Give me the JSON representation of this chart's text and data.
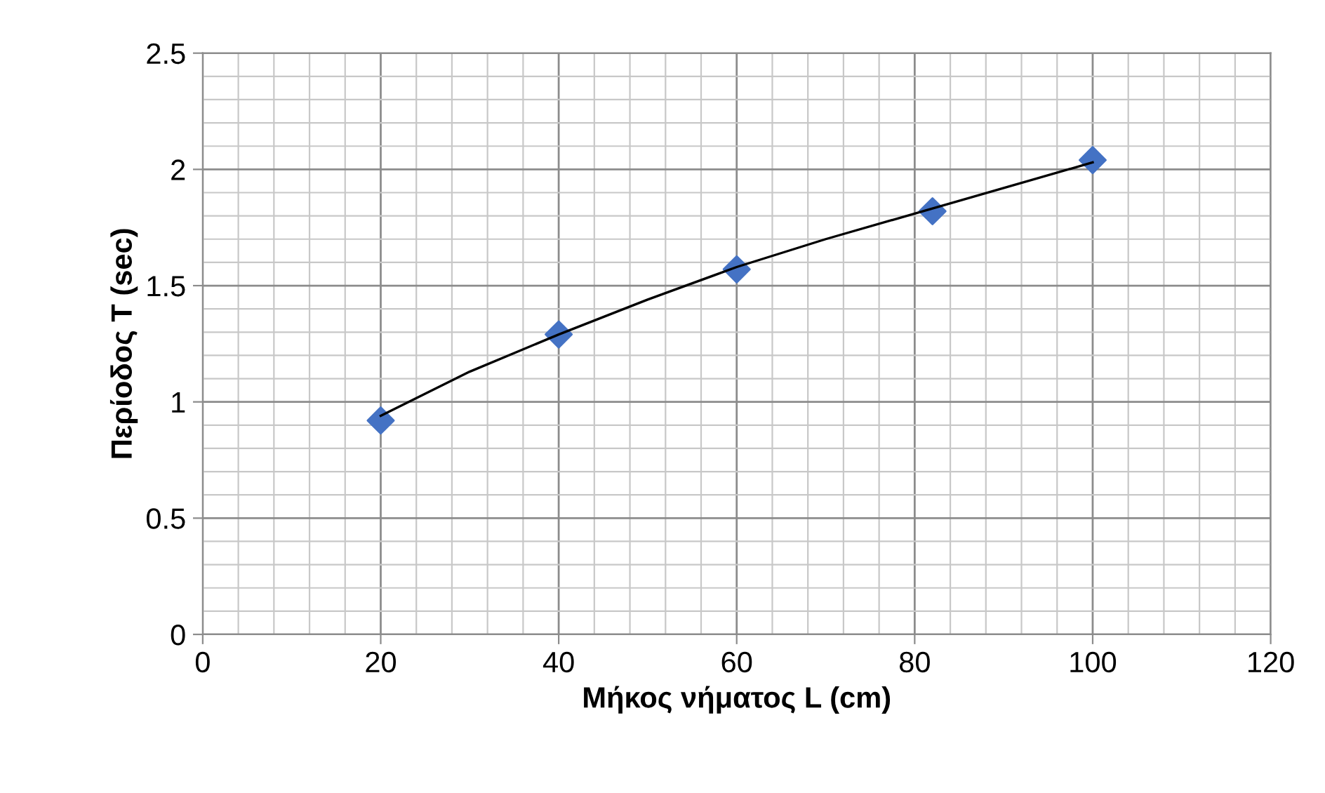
{
  "chart_data": {
    "type": "scatter",
    "xlabel": "Μήκος νήματος L (cm)",
    "ylabel": "Περίοδος T (sec)",
    "series": [
      {
        "color": "#4472c4",
        "marker": "diamond",
        "x": [
          20,
          40,
          60,
          82,
          100
        ],
        "values": [
          0.92,
          1.29,
          1.57,
          1.82,
          2.04
        ]
      },
      {
        "type": "line",
        "color": "#000000",
        "marker": "none",
        "x": [
          20,
          30,
          40,
          50,
          60,
          70,
          80,
          90,
          100
        ],
        "values": [
          0.94,
          1.13,
          1.29,
          1.44,
          1.58,
          1.7,
          1.81,
          1.92,
          2.03
        ]
      }
    ],
    "xlim": [
      0,
      120
    ],
    "xticks": [
      0,
      20,
      40,
      60,
      80,
      100,
      120
    ],
    "ylim": [
      0,
      2.5
    ],
    "yticks": [
      0,
      0.5,
      1,
      1.5,
      2,
      2.5
    ],
    "grid": true,
    "legend": false
  }
}
